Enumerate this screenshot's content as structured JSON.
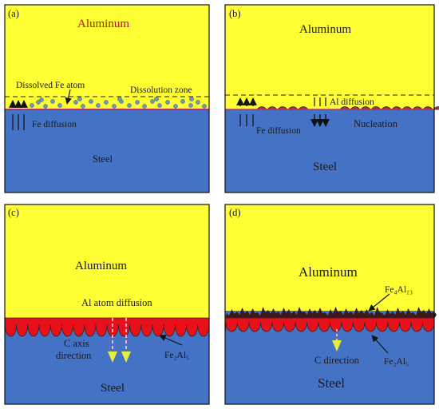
{
  "panels": {
    "a": {
      "label": "(a)",
      "top_material": "Aluminum",
      "bottom_material": "Steel",
      "dissolved_atom": "Dissolved Fe atom",
      "zone": "Dissolution zone",
      "diffusion": "Fe diffusion"
    },
    "b": {
      "label": "(b)",
      "top_material": "Aluminum",
      "bottom_material": "Steel",
      "al_diffusion": "Al diffusion",
      "fe_diffusion": "Fe diffusion",
      "nucleation": "Nucleation"
    },
    "c": {
      "label": "(c)",
      "top_material": "Aluminum",
      "bottom_material": "Steel",
      "al_atom_diffusion": "Al atom diffusion",
      "c_axis_line1": "C axis",
      "c_axis_line2": "direction",
      "phase": "Fe₂Al₅"
    },
    "d": {
      "label": "(d)",
      "top_material": "Aluminum",
      "bottom_material": "Steel",
      "phase_top": "Fe₄Al₁₃",
      "c_direction": "C direction",
      "phase_bottom": "Fe₂Al₅"
    }
  },
  "colors": {
    "aluminum": "#ffff33",
    "steel": "#4472c4",
    "interface": "#c0305a",
    "fe2al5": "#e8101a",
    "fe4al13": "#3a1a1a",
    "fe_atom": "#6b9bb0",
    "arrow_yellow": "#e6f03c"
  }
}
